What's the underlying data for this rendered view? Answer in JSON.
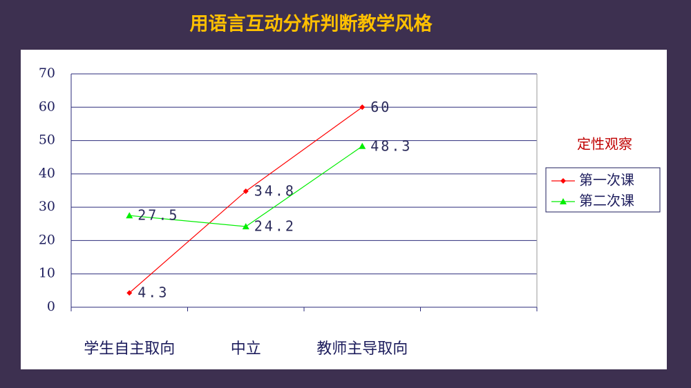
{
  "chart_data": {
    "type": "line",
    "title": "用语言互动分析判断教学风格",
    "categories": [
      "学生自主取向",
      "中立",
      "教师主导取向",
      null
    ],
    "series": [
      {
        "name": "第一次课",
        "color": "#ff0000",
        "marker": "diamond",
        "values": [
          4.3,
          34.8,
          60,
          null
        ]
      },
      {
        "name": "第二次课",
        "color": "#00ee00",
        "marker": "triangle",
        "values": [
          27.5,
          24.2,
          48.3,
          null
        ]
      }
    ],
    "ylim": [
      0,
      70
    ],
    "yticks": [
      0,
      10,
      20,
      30,
      40,
      50,
      60,
      70
    ],
    "grid": true,
    "legend_title": "定性观察",
    "legend": "right"
  }
}
